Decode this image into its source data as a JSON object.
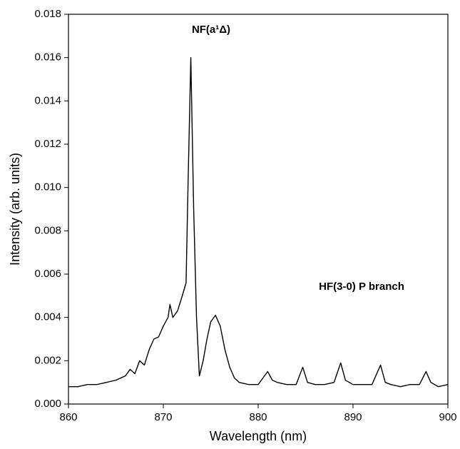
{
  "chart_data": {
    "type": "line",
    "xlabel": "Wavelength (nm)",
    "ylabel": "Intensity (arb. units)",
    "annotations": [
      "NF(a¹Δ)",
      "HF(3-0) P branch"
    ],
    "color": "#000000",
    "x": [
      860,
      861,
      862,
      863,
      864,
      865,
      866,
      866.5,
      867,
      867.5,
      868,
      868.5,
      869,
      869.5,
      870,
      870.5,
      870.7,
      871,
      871.5,
      872,
      872.4,
      872.6,
      872.9,
      873.2,
      873.5,
      873.8,
      874.2,
      874.6,
      875,
      875.5,
      876,
      876.5,
      877,
      877.5,
      878,
      879,
      880,
      881,
      881.5,
      882,
      883,
      884,
      884.7,
      885.2,
      886,
      887,
      888,
      888.7,
      889.2,
      890,
      891,
      892,
      892.9,
      893.4,
      894,
      895,
      896,
      897,
      897.7,
      898.2,
      899,
      900
    ],
    "values": [
      0.0008,
      0.0008,
      0.0009,
      0.0009,
      0.001,
      0.0011,
      0.0013,
      0.0016,
      0.0014,
      0.002,
      0.0018,
      0.0025,
      0.003,
      0.0031,
      0.0036,
      0.004,
      0.0046,
      0.004,
      0.0043,
      0.005,
      0.0056,
      0.01,
      0.016,
      0.009,
      0.004,
      0.0013,
      0.002,
      0.003,
      0.0038,
      0.0041,
      0.0036,
      0.0025,
      0.0017,
      0.0012,
      0.001,
      0.0009,
      0.0009,
      0.0015,
      0.0011,
      0.001,
      0.0009,
      0.0009,
      0.0017,
      0.001,
      0.0009,
      0.0009,
      0.001,
      0.0019,
      0.0011,
      0.0009,
      0.0009,
      0.0009,
      0.0018,
      0.001,
      0.0009,
      0.0008,
      0.0009,
      0.0009,
      0.0015,
      0.001,
      0.0008,
      0.0009
    ],
    "xlim": [
      860,
      900
    ],
    "xticks": [
      860,
      870,
      880,
      890,
      900
    ],
    "ylim": [
      0,
      0.018
    ],
    "yticks": [
      {
        "value": 0,
        "label": "0.000"
      },
      {
        "value": 0.002,
        "label": "0.002"
      },
      {
        "value": 0.004,
        "label": "0.004"
      },
      {
        "value": 0.006,
        "label": "0.006"
      },
      {
        "value": 0.008,
        "label": "0.008"
      },
      {
        "value": 0.01,
        "label": "0.010"
      },
      {
        "value": 0.012,
        "label": "0.012"
      },
      {
        "value": 0.014,
        "label": "0.014"
      },
      {
        "value": 0.016,
        "label": "0.016"
      },
      {
        "value": 0.018,
        "label": "0.018"
      }
    ]
  }
}
